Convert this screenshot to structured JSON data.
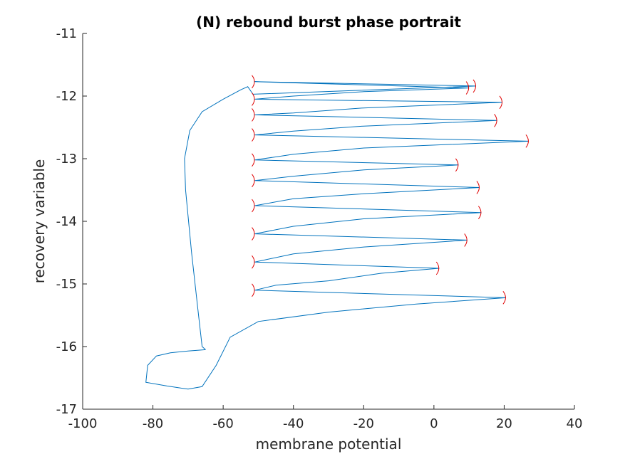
{
  "chart_data": {
    "type": "line",
    "title": "(N) rebound burst phase portrait",
    "xlabel": "membrane potential",
    "ylabel": "recovery variable",
    "xlim": [
      -100,
      40
    ],
    "ylim": [
      -17,
      -11
    ],
    "xticks": [
      -100,
      -80,
      -60,
      -40,
      -20,
      0,
      20,
      40
    ],
    "yticks": [
      -17,
      -16,
      -15,
      -14,
      -13,
      -12,
      -11
    ],
    "grid": false,
    "colors": {
      "trajectory": "#0072BD",
      "direction_arrows": "#E00000"
    },
    "series": [
      {
        "points": [
          {
            "x": -65,
            "y": -16.05
          },
          {
            "x": -70,
            "y": -16.07
          },
          {
            "x": -75,
            "y": -16.1
          },
          {
            "x": -79,
            "y": -16.15
          },
          {
            "x": -81.5,
            "y": -16.3
          },
          {
            "x": -82,
            "y": -16.57
          },
          {
            "x": -76,
            "y": -16.63
          },
          {
            "x": -70,
            "y": -16.68
          },
          {
            "x": -66,
            "y": -16.64
          },
          {
            "x": -62,
            "y": -16.3
          },
          {
            "x": -58,
            "y": -15.85
          },
          {
            "x": -50,
            "y": -15.6
          },
          {
            "x": -30,
            "y": -15.45
          },
          {
            "x": -5,
            "y": -15.32
          },
          {
            "x": 20.5,
            "y": -15.22
          },
          {
            "x": -51,
            "y": -15.1
          },
          {
            "x": -45,
            "y": -15.02
          },
          {
            "x": -30,
            "y": -14.95
          },
          {
            "x": -15,
            "y": -14.83
          },
          {
            "x": 1.5,
            "y": -14.75
          },
          {
            "x": -51,
            "y": -14.65
          },
          {
            "x": -40,
            "y": -14.52
          },
          {
            "x": -20,
            "y": -14.41
          },
          {
            "x": 9.5,
            "y": -14.3
          },
          {
            "x": -51,
            "y": -14.2
          },
          {
            "x": -40,
            "y": -14.08
          },
          {
            "x": -20,
            "y": -13.96
          },
          {
            "x": 13.5,
            "y": -13.86
          },
          {
            "x": -51,
            "y": -13.75
          },
          {
            "x": -40,
            "y": -13.64
          },
          {
            "x": -20,
            "y": -13.56
          },
          {
            "x": 13,
            "y": -13.46
          },
          {
            "x": -51,
            "y": -13.35
          },
          {
            "x": -40,
            "y": -13.28
          },
          {
            "x": -20,
            "y": -13.18
          },
          {
            "x": 7,
            "y": -13.1
          },
          {
            "x": -51,
            "y": -13.02
          },
          {
            "x": -40,
            "y": -12.93
          },
          {
            "x": -20,
            "y": -12.83
          },
          {
            "x": 27,
            "y": -12.72
          },
          {
            "x": -51,
            "y": -12.62
          },
          {
            "x": -40,
            "y": -12.56
          },
          {
            "x": -20,
            "y": -12.48
          },
          {
            "x": 18,
            "y": -12.39
          },
          {
            "x": -51,
            "y": -12.3
          },
          {
            "x": -40,
            "y": -12.27
          },
          {
            "x": -20,
            "y": -12.19
          },
          {
            "x": 19.5,
            "y": -12.1
          },
          {
            "x": -51,
            "y": -12.05
          },
          {
            "x": -40,
            "y": -12.0
          },
          {
            "x": -20,
            "y": -11.93
          },
          {
            "x": 10,
            "y": -11.87
          },
          {
            "x": -51,
            "y": -11.77
          },
          {
            "x": 12,
            "y": -11.84
          },
          {
            "x": -51.5,
            "y": -11.97
          },
          {
            "x": -53,
            "y": -11.85
          },
          {
            "x": -55,
            "y": -11.9
          },
          {
            "x": -60,
            "y": -12.05
          },
          {
            "x": -66,
            "y": -12.25
          },
          {
            "x": -69.5,
            "y": -12.55
          },
          {
            "x": -71,
            "y": -13.0
          },
          {
            "x": -70.7,
            "y": -13.5
          },
          {
            "x": -69,
            "y": -14.5
          },
          {
            "x": -67,
            "y": -15.5
          },
          {
            "x": -66,
            "y": -16.0
          },
          {
            "x": -65,
            "y": -16.05
          }
        ]
      }
    ],
    "direction_markers": [
      {
        "x": 20.5,
        "y": -15.22
      },
      {
        "x": 1.5,
        "y": -14.75
      },
      {
        "x": 9.5,
        "y": -14.3
      },
      {
        "x": 13.5,
        "y": -13.86
      },
      {
        "x": 13,
        "y": -13.46
      },
      {
        "x": 7,
        "y": -13.1
      },
      {
        "x": 27,
        "y": -12.72
      },
      {
        "x": 18,
        "y": -12.39
      },
      {
        "x": 19.5,
        "y": -12.1
      },
      {
        "x": 10,
        "y": -11.87
      },
      {
        "x": 12,
        "y": -11.84
      },
      {
        "x": -51,
        "y": -15.1
      },
      {
        "x": -51,
        "y": -14.65
      },
      {
        "x": -51,
        "y": -14.2
      },
      {
        "x": -51,
        "y": -13.75
      },
      {
        "x": -51,
        "y": -13.35
      },
      {
        "x": -51,
        "y": -13.02
      },
      {
        "x": -51,
        "y": -12.62
      },
      {
        "x": -51,
        "y": -12.3
      },
      {
        "x": -51,
        "y": -12.05
      },
      {
        "x": -51,
        "y": -11.77
      }
    ]
  }
}
